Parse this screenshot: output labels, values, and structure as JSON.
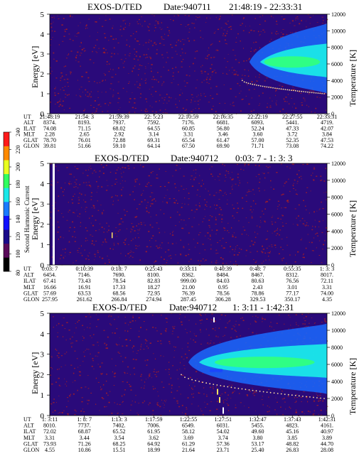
{
  "chart_data": [
    {
      "type": "heatmap",
      "title": "EXOS-D/TED",
      "date_label": "Date:940711",
      "time_range": "21:48:19 - 22:33:31",
      "ylabel": "Energy [eV]",
      "y2label": "Temperature [K]",
      "ylim": [
        0,
        5
      ],
      "yticks": [
        "0",
        "1",
        "2",
        "3",
        "4",
        "5"
      ],
      "y2lim": [
        0,
        12000
      ],
      "y2ticks": [
        "0",
        "2000",
        "4000",
        "6000",
        "8000",
        "10000",
        "12000"
      ],
      "ephemeris": {
        "row_labels": [
          "UT",
          "ALT",
          "ILAT",
          "MLT",
          "GLAT",
          "GLON"
        ],
        "columns": [
          [
            "21:48:19",
            "8374.",
            "74.08",
            "2.28",
            "78.70",
            "39.81"
          ],
          [
            "21:54: 3",
            "8193.",
            "71.15",
            "2.65",
            "76.01",
            "51.66"
          ],
          [
            "21:59:39",
            "7937.",
            "68.02",
            "2.92",
            "72.88",
            "59.10"
          ],
          [
            "22: 5:23",
            "7592.",
            "64.55",
            "3.14",
            "69.31",
            "64.14"
          ],
          [
            "22:10:59",
            "7176.",
            "60.85",
            "3.31",
            "65.54",
            "67.50"
          ],
          [
            "22:16:35",
            "6681.",
            "56.80",
            "3.46",
            "61.47",
            "69.90"
          ],
          [
            "22:22:19",
            "6093.",
            "52.24",
            "3.60",
            "57.00",
            "71.71"
          ],
          [
            "22:27:55",
            "5441.",
            "47.33",
            "3.72",
            "52.35",
            "73.08"
          ],
          [
            "22:33:31",
            "4719.",
            "42.07",
            "3.84",
            "47.53",
            "74.22"
          ]
        ]
      },
      "features": {
        "enhancement_start_frac": 0.72,
        "band_center_energy_eV": 2.6,
        "temperature_trace_start_K": 4000,
        "temperature_trace_end_K": 2400
      }
    },
    {
      "type": "heatmap",
      "title": "EXOS-D/TED",
      "date_label": "Date:940712",
      "time_range": "0:03: 7 - 1: 3: 3",
      "ylabel": "Energy [eV]",
      "y2label": "Temperature [K]",
      "ylim": [
        0,
        5
      ],
      "yticks": [
        "0",
        "1",
        "2",
        "3",
        "4",
        "5"
      ],
      "y2lim": [
        0,
        12000
      ],
      "y2ticks": [
        "0",
        "2000",
        "4000",
        "6000",
        "8000",
        "10000",
        "12000"
      ],
      "ephemeris": {
        "row_labels": [
          "UT",
          "ALT",
          "ILAT",
          "MLT",
          "GLAT",
          "GLON"
        ],
        "columns": [
          [
            "0:03: 7",
            "6454.",
            "67.41",
            "16.66",
            "57.69",
            "257.95"
          ],
          [
            "0:10:39",
            "7146.",
            "73.43",
            "16.91",
            "63.53",
            "261.62"
          ],
          [
            "0:18: 7",
            "7690.",
            "78.54",
            "17.33",
            "68.56",
            "266.84"
          ],
          [
            "0:25:43",
            "8100.",
            "82.83",
            "18.27",
            "72.95",
            "274.94"
          ],
          [
            "0:33:11",
            "8362.",
            "999.00",
            "21.00",
            "76.39",
            "287.45"
          ],
          [
            "0:40:39",
            "8484.",
            "84.03",
            "0.95",
            "78.56",
            "306.28"
          ],
          [
            "0:48: 7",
            "8467.",
            "80.63",
            "2.43",
            "78.86",
            "329.53"
          ],
          [
            "0:55:35",
            "8312.",
            "76.56",
            "3.01",
            "77.17",
            "350.17"
          ],
          [
            "1: 3: 3",
            "8017.",
            "72.11",
            "3.31",
            "74.00",
            "4.35"
          ]
        ]
      }
    },
    {
      "type": "heatmap",
      "title": "EXOS-D/TED",
      "date_label": "Date:940712",
      "time_range": "1: 3:11 - 1:42:31",
      "ylabel": "Energy [eV]",
      "y2label": "Temperature [K]",
      "ylim": [
        0,
        5
      ],
      "yticks": [
        "0",
        "1",
        "2",
        "3",
        "4",
        "5"
      ],
      "y2lim": [
        0,
        12000
      ],
      "y2ticks": [
        "0",
        "2000",
        "4000",
        "6000",
        "8000",
        "10000",
        "12000"
      ],
      "ephemeris": {
        "row_labels": [
          "UT",
          "ALT",
          "ILAT",
          "MLT",
          "GLAT",
          "GLON"
        ],
        "columns": [
          [
            "1: 3:11",
            "8010.",
            "72.02",
            "3.31",
            "73.93",
            "4.55"
          ],
          [
            "1: 8: 7",
            "7737.",
            "68.87",
            "3.44",
            "71.26",
            "10.86"
          ],
          [
            "1:13: 3",
            "7402.",
            "65.52",
            "3.54",
            "68.25",
            "15.51"
          ],
          [
            "1:17:59",
            "7006.",
            "61.95",
            "3.62",
            "64.92",
            "18.99"
          ],
          [
            "1:22:55",
            "6549.",
            "58.12",
            "3.69",
            "61.29",
            "21.64"
          ],
          [
            "1:27:51",
            "6031.",
            "54.02",
            "3.74",
            "57.36",
            "23.71"
          ],
          [
            "1:32:47",
            "5455.",
            "49.60",
            "3.80",
            "53.17",
            "25.40"
          ],
          [
            "1:37:43",
            "4823.",
            "45.16",
            "3.85",
            "48.82",
            "26.83"
          ],
          [
            "1:42:31",
            "4161.",
            "40.97",
            "3.89",
            "44.70",
            "28.08"
          ]
        ]
      },
      "features": {
        "enhancement_start_frac": 0.5,
        "band_center_energy_eV": 2.6,
        "temperature_trace_start_K": 4800,
        "temperature_trace_end_K": 2000
      }
    }
  ],
  "colorbar": {
    "label": "Second Harmonic Current",
    "ticks": [
      "80",
      "100",
      "120",
      "140",
      "160",
      "180",
      "200",
      "220",
      "240"
    ],
    "colors": [
      "#000000",
      "#5a0a5a",
      "#1a0a8a",
      "#1010ff",
      "#1a7aff",
      "#1ae8e8",
      "#30ff60",
      "#e8ff20",
      "#ff8a00",
      "#ff1a1a"
    ]
  },
  "colors": {
    "background": "#2a0a7a",
    "speckle": "#b02020",
    "band_blue": "#1a6aff",
    "band_cyan": "#1ae8e8",
    "band_green": "#30ff80",
    "trace": "#ffe0a0"
  }
}
